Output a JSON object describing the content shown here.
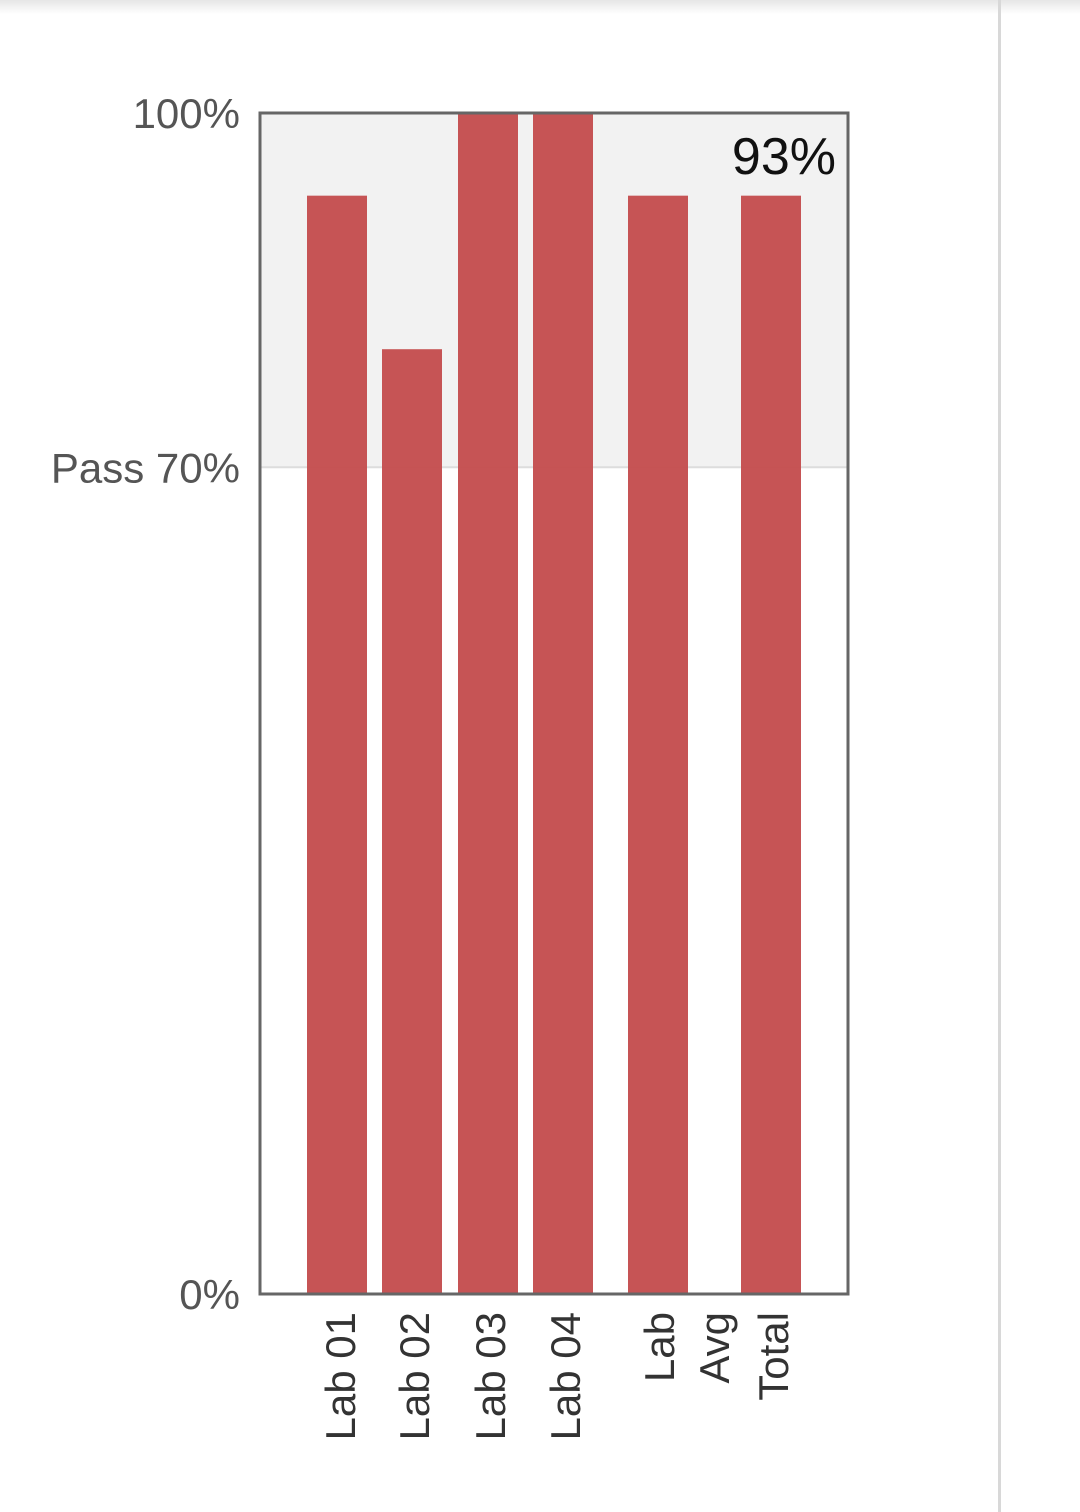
{
  "chart_data": {
    "type": "bar",
    "categories": [
      "Lab 01",
      "Lab 02",
      "Lab 03",
      "Lab 04",
      "Lab Avg",
      "Total"
    ],
    "values": [
      93,
      80,
      100,
      100,
      93,
      93
    ],
    "ylim": [
      0,
      100
    ],
    "y_ticks": [
      {
        "value": 100,
        "label": "100%"
      },
      {
        "value": 70,
        "label": "Pass 70%"
      },
      {
        "value": 0,
        "label": "0%"
      }
    ],
    "pass_threshold": 70,
    "total_label": "93%",
    "bar_color": "#c44e4f",
    "pass_region_color": "#f2f2f2",
    "grid": false,
    "legend": "none"
  }
}
